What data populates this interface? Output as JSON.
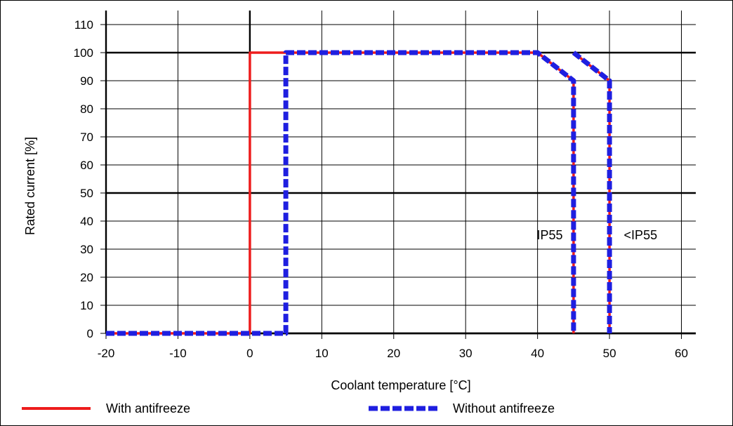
{
  "chart_data": {
    "type": "line",
    "xlabel": "Coolant temperature [°C]",
    "ylabel": "Rated current [%]",
    "xlim": [
      -20,
      62
    ],
    "ylim": [
      0,
      110
    ],
    "xticks": [
      -20,
      -10,
      0,
      10,
      20,
      30,
      40,
      50,
      60
    ],
    "yticks": [
      0,
      10,
      20,
      30,
      40,
      50,
      60,
      70,
      80,
      90,
      100,
      110
    ],
    "grid": true,
    "legend_position": "bottom",
    "series": [
      {
        "name": "With antifreeze",
        "style": "solid",
        "color": "#ee1c1c",
        "segments": [
          [
            [
              -20,
              0
            ],
            [
              0,
              0
            ],
            [
              0,
              100
            ],
            [
              40,
              100
            ],
            [
              45,
              90
            ],
            [
              45,
              0
            ]
          ],
          [
            [
              45,
              100
            ],
            [
              50,
              90
            ],
            [
              50,
              0
            ]
          ]
        ]
      },
      {
        "name": "Without antifreeze",
        "style": "dashed",
        "color": "#1f1fe0",
        "segments": [
          [
            [
              -20,
              0
            ],
            [
              5,
              0
            ],
            [
              5,
              100
            ],
            [
              40,
              100
            ],
            [
              45,
              90
            ],
            [
              45,
              0
            ]
          ],
          [
            [
              45,
              100
            ],
            [
              50,
              90
            ],
            [
              50,
              0
            ]
          ]
        ]
      }
    ],
    "annotations": [
      {
        "text": "IP55",
        "x": 43.5,
        "y": 35
      },
      {
        "text": "<IP55",
        "x": 52,
        "y": 35
      }
    ]
  }
}
